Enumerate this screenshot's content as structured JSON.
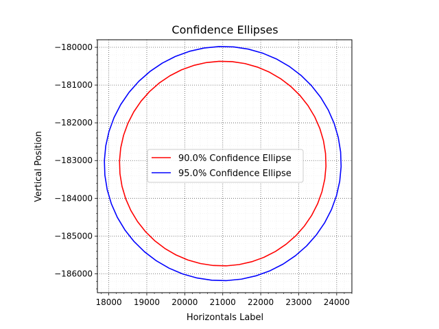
{
  "chart_data": {
    "type": "line",
    "title": "Confidence Ellipses",
    "xlabel": "Horizontals Label",
    "ylabel": "Vertical Position",
    "xlim": [
      17700,
      24400
    ],
    "ylim": [
      -186500,
      -179800
    ],
    "x_ticks": [
      18000,
      19000,
      20000,
      21000,
      22000,
      23000,
      24000
    ],
    "x_tick_labels": [
      "18000",
      "19000",
      "20000",
      "21000",
      "22000",
      "23000",
      "24000"
    ],
    "y_ticks": [
      -180000,
      -181000,
      -182000,
      -183000,
      -184000,
      -185000,
      -186000
    ],
    "y_tick_labels": [
      "−180000",
      "−181000",
      "−182000",
      "−183000",
      "−184000",
      "−185000",
      "−186000"
    ],
    "grid": true,
    "legend_position": "center",
    "series": [
      {
        "name": "90.0% Confidence Ellipse",
        "color": "#ff0000",
        "center": [
          21000,
          -183080
        ],
        "radius_x": 2720,
        "radius_y": 2710,
        "angle_deg": 20
      },
      {
        "name": "95.0% Confidence Ellipse",
        "color": "#0000ff",
        "center": [
          21000,
          -183080
        ],
        "radius_x": 3120,
        "radius_y": 3100,
        "angle_deg": 20
      }
    ]
  }
}
